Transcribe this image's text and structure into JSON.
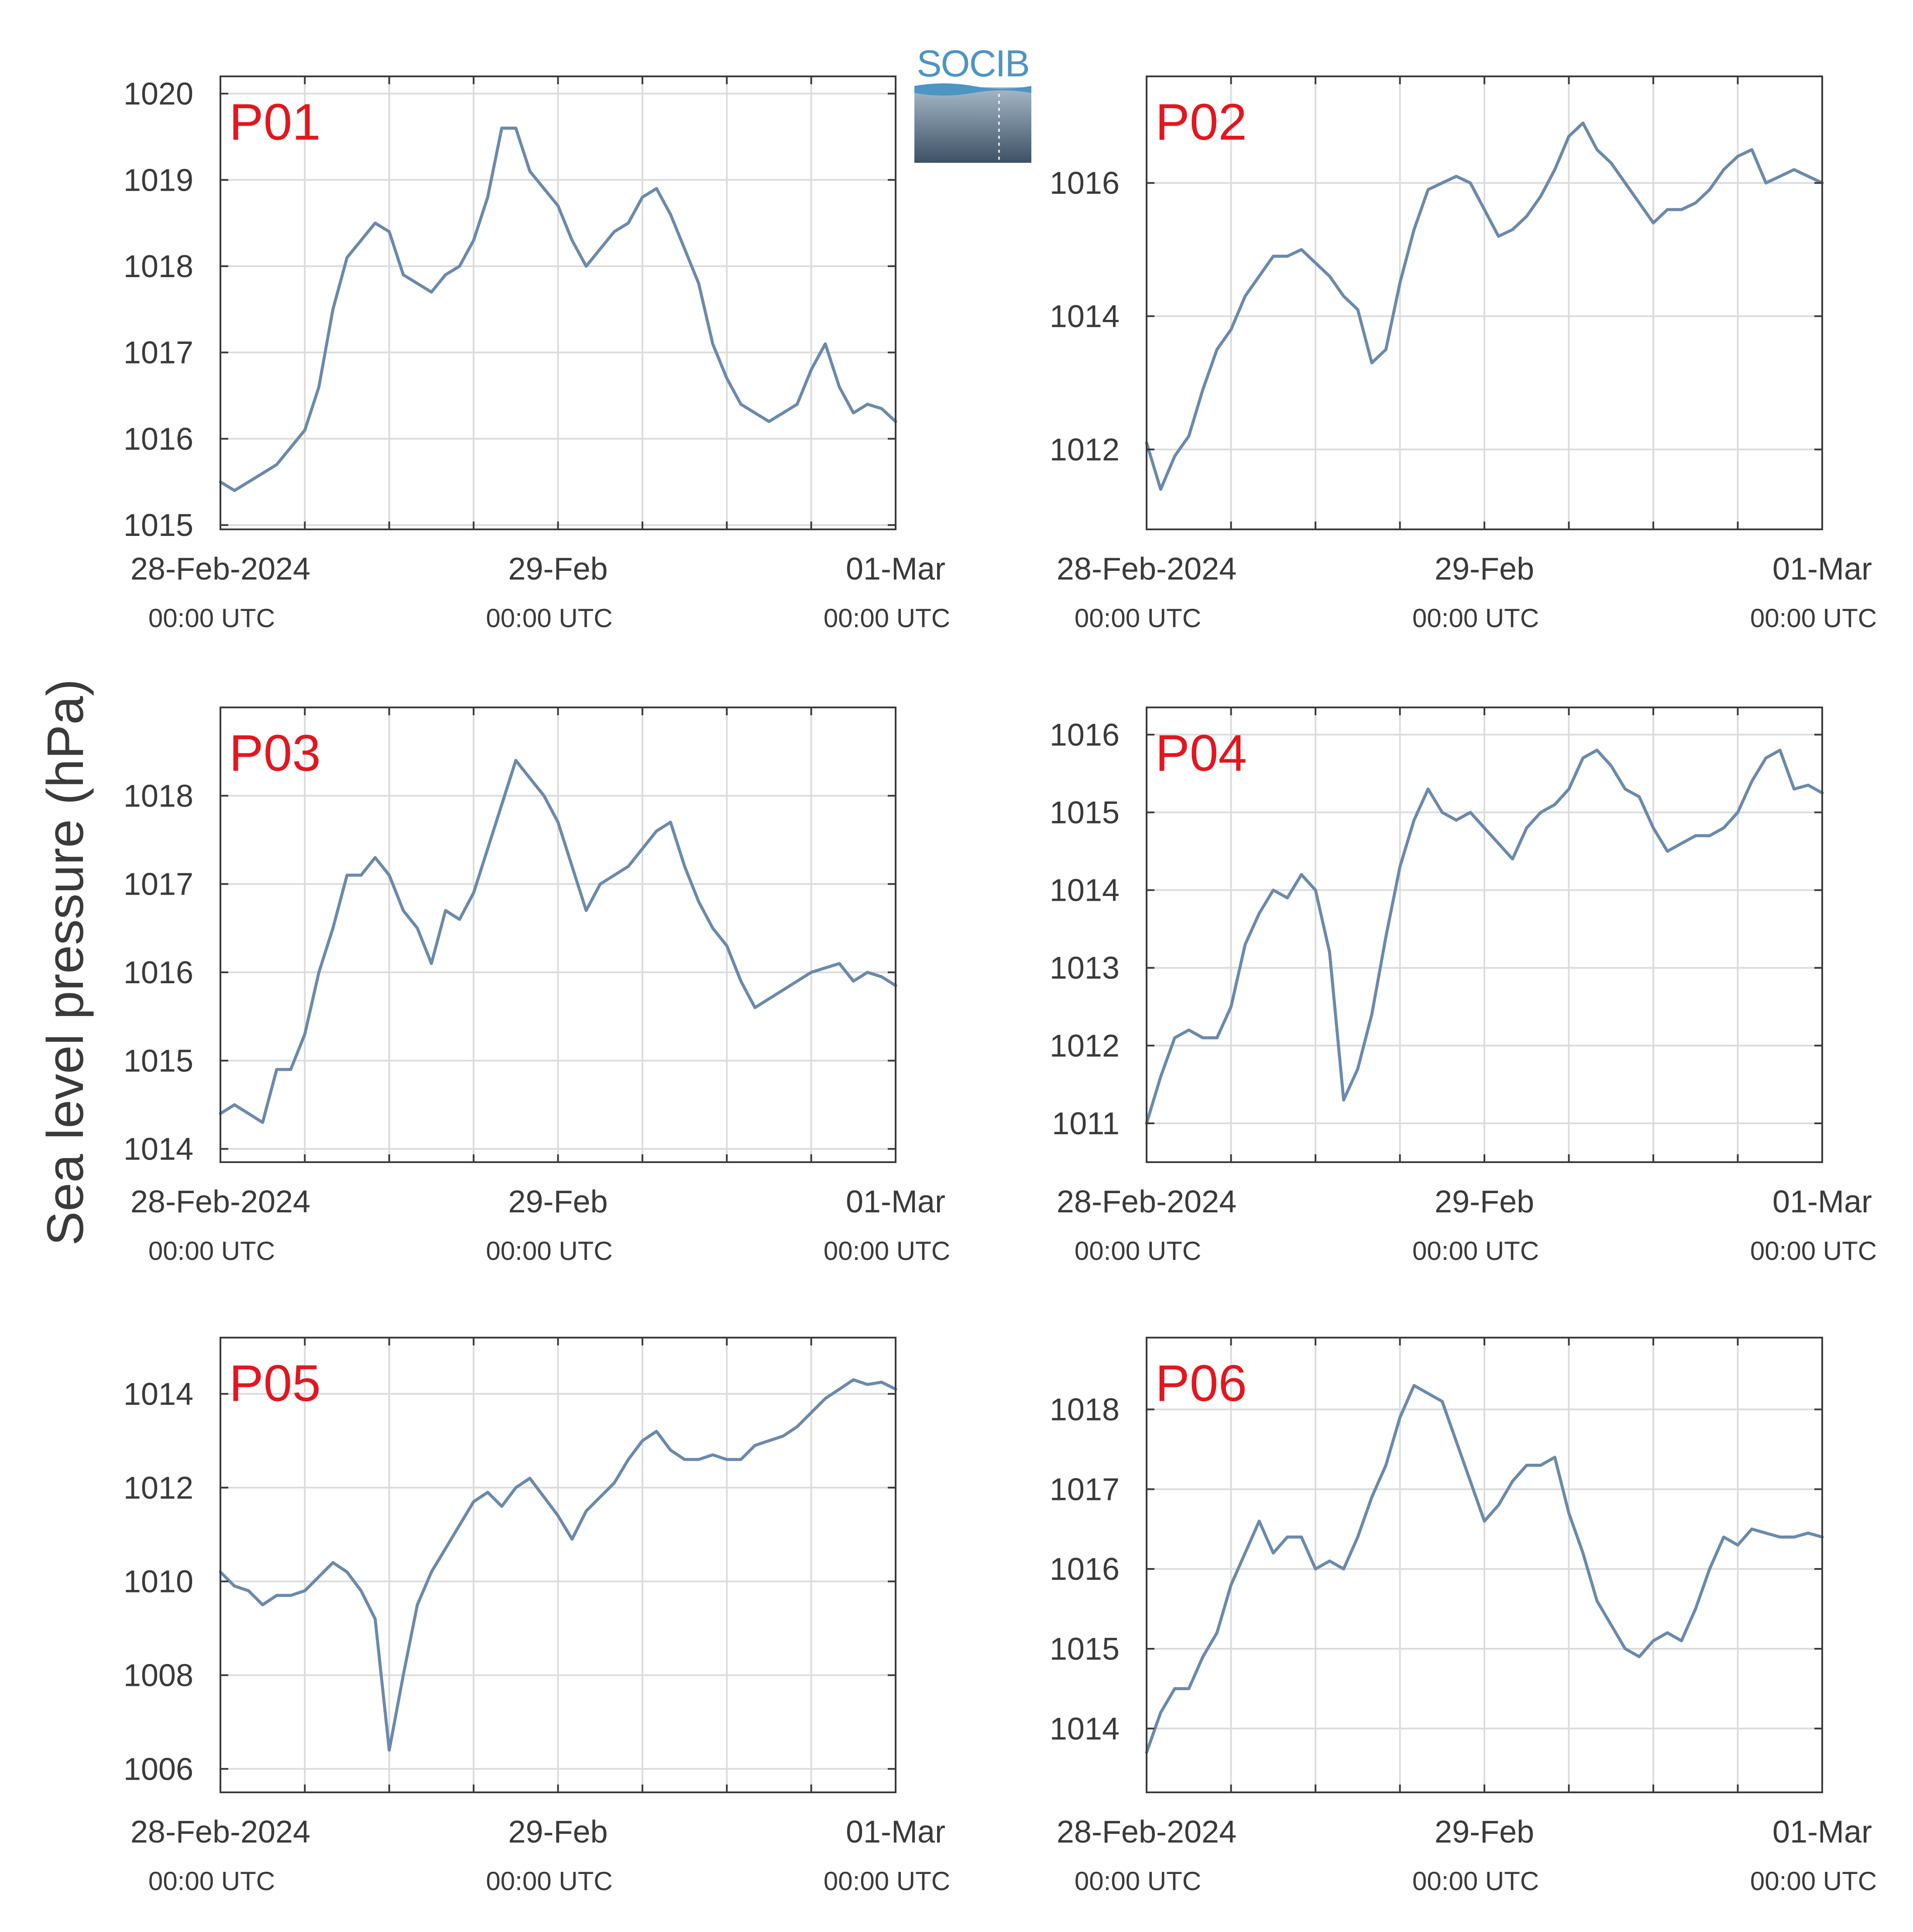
{
  "figure": {
    "ylabel": "Sea level pressure (hPa)",
    "logo_text": "SOCIB",
    "colors": {
      "line": "#6a8aab",
      "panel_label": "#e3161f",
      "grid": "#dcdcdc",
      "axis": "#3a3a3a",
      "text": "#3a3a3a"
    }
  },
  "chart_data": [
    {
      "type": "line",
      "panel_label": "P01",
      "x_range": [
        "28-Feb-2024 00:00",
        "01-Mar-2024 00:00"
      ],
      "xticks": [
        {
          "day": "28-Feb-2024",
          "time": "00:00 UTC"
        },
        {
          "day": "29-Feb",
          "time": "00:00 UTC"
        },
        {
          "day": "01-Mar",
          "time": "00:00 UTC"
        }
      ],
      "ylim": [
        1014.95,
        1020.2
      ],
      "yticks": [
        1015,
        1016,
        1017,
        1018,
        1019,
        1020
      ],
      "series": [
        {
          "x_hours": [
            0,
            1,
            2,
            3,
            4,
            5,
            6,
            7,
            8,
            9,
            10,
            11,
            12,
            13,
            14,
            15,
            16,
            17,
            18,
            19,
            20,
            21,
            22,
            23,
            24,
            25,
            26,
            27,
            28,
            29,
            30,
            31,
            32,
            33,
            34,
            35,
            36,
            37,
            38,
            39,
            40,
            41,
            42,
            43,
            44,
            45,
            46,
            47,
            48
          ],
          "values": [
            1015.5,
            1015.4,
            1015.5,
            1015.6,
            1015.7,
            1015.9,
            1016.1,
            1016.6,
            1017.5,
            1018.1,
            1018.3,
            1018.5,
            1018.4,
            1017.9,
            1017.8,
            1017.7,
            1017.9,
            1018.0,
            1018.3,
            1018.8,
            1019.6,
            1019.6,
            1019.1,
            1018.9,
            1018.7,
            1018.3,
            1018.0,
            1018.2,
            1018.4,
            1018.5,
            1018.8,
            1018.9,
            1018.6,
            1018.2,
            1017.8,
            1017.1,
            1016.7,
            1016.4,
            1016.3,
            1016.2,
            1016.3,
            1016.4,
            1016.8,
            1017.1,
            1016.6,
            1016.3,
            1016.4,
            1016.35,
            1016.2
          ]
        }
      ]
    },
    {
      "type": "line",
      "panel_label": "P02",
      "x_range": [
        "28-Feb-2024 00:00",
        "01-Mar-2024 00:00"
      ],
      "xticks": [
        {
          "day": "28-Feb-2024",
          "time": "00:00 UTC"
        },
        {
          "day": "29-Feb",
          "time": "00:00 UTC"
        },
        {
          "day": "01-Mar",
          "time": "00:00 UTC"
        }
      ],
      "ylim": [
        1010.8,
        1017.6
      ],
      "yticks": [
        1012,
        1014,
        1016
      ],
      "series": [
        {
          "x_hours": [
            0,
            1,
            2,
            3,
            4,
            5,
            6,
            7,
            8,
            9,
            10,
            11,
            12,
            13,
            14,
            15,
            16,
            17,
            18,
            19,
            20,
            21,
            22,
            23,
            24,
            25,
            26,
            27,
            28,
            29,
            30,
            31,
            32,
            33,
            34,
            35,
            36,
            37,
            38,
            39,
            40,
            41,
            42,
            43,
            44,
            45,
            46,
            47,
            48
          ],
          "values": [
            1012.1,
            1011.4,
            1011.9,
            1012.2,
            1012.9,
            1013.5,
            1013.8,
            1014.3,
            1014.6,
            1014.9,
            1014.9,
            1015.0,
            1014.8,
            1014.6,
            1014.3,
            1014.1,
            1013.3,
            1013.5,
            1014.5,
            1015.3,
            1015.9,
            1016.0,
            1016.1,
            1016.0,
            1015.6,
            1015.2,
            1015.3,
            1015.5,
            1015.8,
            1016.2,
            1016.7,
            1016.9,
            1016.5,
            1016.3,
            1016.0,
            1015.7,
            1015.4,
            1015.6,
            1015.6,
            1015.7,
            1015.9,
            1016.2,
            1016.4,
            1016.5,
            1016.0,
            1016.1,
            1016.2,
            1016.1,
            1016.0
          ]
        }
      ]
    },
    {
      "type": "line",
      "panel_label": "P03",
      "x_range": [
        "28-Feb-2024 00:00",
        "01-Mar-2024 00:00"
      ],
      "xticks": [
        {
          "day": "28-Feb-2024",
          "time": "00:00 UTC"
        },
        {
          "day": "29-Feb",
          "time": "00:00 UTC"
        },
        {
          "day": "01-Mar",
          "time": "00:00 UTC"
        }
      ],
      "ylim": [
        1013.85,
        1019.0
      ],
      "yticks": [
        1014,
        1015,
        1016,
        1017,
        1018
      ],
      "series": [
        {
          "x_hours": [
            0,
            1,
            2,
            3,
            4,
            5,
            6,
            7,
            8,
            9,
            10,
            11,
            12,
            13,
            14,
            15,
            16,
            17,
            18,
            19,
            20,
            21,
            22,
            23,
            24,
            25,
            26,
            27,
            28,
            29,
            30,
            31,
            32,
            33,
            34,
            35,
            36,
            37,
            38,
            39,
            40,
            41,
            42,
            43,
            44,
            45,
            46,
            47,
            48
          ],
          "values": [
            1014.4,
            1014.5,
            1014.4,
            1014.3,
            1014.9,
            1014.9,
            1015.3,
            1016.0,
            1016.5,
            1017.1,
            1017.1,
            1017.3,
            1017.1,
            1016.7,
            1016.5,
            1016.1,
            1016.7,
            1016.6,
            1016.9,
            1017.4,
            1017.9,
            1018.4,
            1018.2,
            1018.0,
            1017.7,
            1017.2,
            1016.7,
            1017.0,
            1017.1,
            1017.2,
            1017.4,
            1017.6,
            1017.7,
            1017.2,
            1016.8,
            1016.5,
            1016.3,
            1015.9,
            1015.6,
            1015.7,
            1015.8,
            1015.9,
            1016.0,
            1016.05,
            1016.1,
            1015.9,
            1016.0,
            1015.95,
            1015.85
          ]
        }
      ]
    },
    {
      "type": "line",
      "panel_label": "P04",
      "x_range": [
        "28-Feb-2024 00:00",
        "01-Mar-2024 00:00"
      ],
      "xticks": [
        {
          "day": "28-Feb-2024",
          "time": "00:00 UTC"
        },
        {
          "day": "29-Feb",
          "time": "00:00 UTC"
        },
        {
          "day": "01-Mar",
          "time": "00:00 UTC"
        }
      ],
      "ylim": [
        1010.5,
        1016.35
      ],
      "yticks": [
        1011,
        1012,
        1013,
        1014,
        1015,
        1016
      ],
      "series": [
        {
          "x_hours": [
            0,
            1,
            2,
            3,
            4,
            5,
            6,
            7,
            8,
            9,
            10,
            11,
            12,
            13,
            14,
            15,
            16,
            17,
            18,
            19,
            20,
            21,
            22,
            23,
            24,
            25,
            26,
            27,
            28,
            29,
            30,
            31,
            32,
            33,
            34,
            35,
            36,
            37,
            38,
            39,
            40,
            41,
            42,
            43,
            44,
            45,
            46,
            47,
            48
          ],
          "values": [
            1011.0,
            1011.6,
            1012.1,
            1012.2,
            1012.1,
            1012.1,
            1012.5,
            1013.3,
            1013.7,
            1014.0,
            1013.9,
            1014.2,
            1014.0,
            1013.2,
            1011.3,
            1011.7,
            1012.4,
            1013.4,
            1014.3,
            1014.9,
            1015.3,
            1015.0,
            1014.9,
            1015.0,
            1014.8,
            1014.6,
            1014.4,
            1014.8,
            1015.0,
            1015.1,
            1015.3,
            1015.7,
            1015.8,
            1015.6,
            1015.3,
            1015.2,
            1014.8,
            1014.5,
            1014.6,
            1014.7,
            1014.7,
            1014.8,
            1015.0,
            1015.4,
            1015.7,
            1015.8,
            1015.3,
            1015.35,
            1015.25
          ]
        }
      ]
    },
    {
      "type": "line",
      "panel_label": "P05",
      "x_range": [
        "28-Feb-2024 00:00",
        "01-Mar-2024 00:00"
      ],
      "xticks": [
        {
          "day": "28-Feb-2024",
          "time": "00:00 UTC"
        },
        {
          "day": "29-Feb",
          "time": "00:00 UTC"
        },
        {
          "day": "01-Mar",
          "time": "00:00 UTC"
        }
      ],
      "ylim": [
        1005.5,
        1015.2
      ],
      "yticks": [
        1006,
        1008,
        1010,
        1012,
        1014
      ],
      "series": [
        {
          "x_hours": [
            0,
            1,
            2,
            3,
            4,
            5,
            6,
            7,
            8,
            9,
            10,
            11,
            12,
            13,
            14,
            15,
            16,
            17,
            18,
            19,
            20,
            21,
            22,
            23,
            24,
            25,
            26,
            27,
            28,
            29,
            30,
            31,
            32,
            33,
            34,
            35,
            36,
            37,
            38,
            39,
            40,
            41,
            42,
            43,
            44,
            45,
            46,
            47,
            48
          ],
          "values": [
            1010.2,
            1009.9,
            1009.8,
            1009.5,
            1009.7,
            1009.7,
            1009.8,
            1010.1,
            1010.4,
            1010.2,
            1009.8,
            1009.2,
            1006.4,
            1008.0,
            1009.5,
            1010.2,
            1010.7,
            1011.2,
            1011.7,
            1011.9,
            1011.6,
            1012.0,
            1012.2,
            1011.8,
            1011.4,
            1010.9,
            1011.5,
            1011.8,
            1012.1,
            1012.6,
            1013.0,
            1013.2,
            1012.8,
            1012.6,
            1012.6,
            1012.7,
            1012.6,
            1012.6,
            1012.9,
            1013.0,
            1013.1,
            1013.3,
            1013.6,
            1013.9,
            1014.1,
            1014.3,
            1014.2,
            1014.25,
            1014.1
          ]
        }
      ]
    },
    {
      "type": "line",
      "panel_label": "P06",
      "x_range": [
        "28-Feb-2024 00:00",
        "01-Mar-2024 00:00"
      ],
      "xticks": [
        {
          "day": "28-Feb-2024",
          "time": "00:00 UTC"
        },
        {
          "day": "29-Feb",
          "time": "00:00 UTC"
        },
        {
          "day": "01-Mar",
          "time": "00:00 UTC"
        }
      ],
      "ylim": [
        1013.2,
        1018.9
      ],
      "yticks": [
        1014,
        1015,
        1016,
        1017,
        1018
      ],
      "series": [
        {
          "x_hours": [
            0,
            1,
            2,
            3,
            4,
            5,
            6,
            7,
            8,
            9,
            10,
            11,
            12,
            13,
            14,
            15,
            16,
            17,
            18,
            19,
            20,
            21,
            22,
            23,
            24,
            25,
            26,
            27,
            28,
            29,
            30,
            31,
            32,
            33,
            34,
            35,
            36,
            37,
            38,
            39,
            40,
            41,
            42,
            43,
            44,
            45,
            46,
            47,
            48
          ],
          "values": [
            1013.7,
            1014.2,
            1014.5,
            1014.5,
            1014.9,
            1015.2,
            1015.8,
            1016.2,
            1016.6,
            1016.2,
            1016.4,
            1016.4,
            1016.0,
            1016.1,
            1016.0,
            1016.4,
            1016.9,
            1017.3,
            1017.9,
            1018.3,
            1018.2,
            1018.1,
            1017.6,
            1017.1,
            1016.6,
            1016.8,
            1017.1,
            1017.3,
            1017.3,
            1017.4,
            1016.7,
            1016.2,
            1015.6,
            1015.3,
            1015.0,
            1014.9,
            1015.1,
            1015.2,
            1015.1,
            1015.5,
            1016.0,
            1016.4,
            1016.3,
            1016.5,
            1016.45,
            1016.4,
            1016.4,
            1016.45,
            1016.4
          ]
        }
      ]
    }
  ]
}
